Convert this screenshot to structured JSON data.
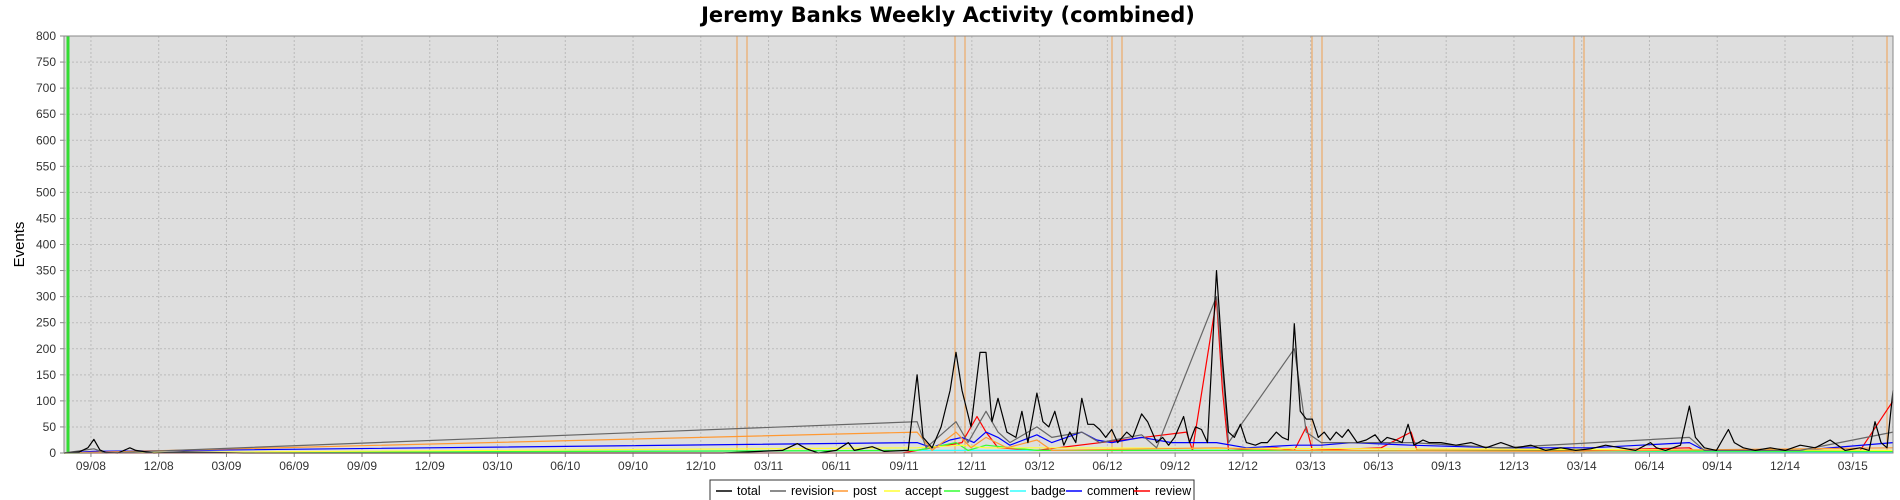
{
  "chart_data": {
    "type": "line",
    "title": "Jeremy Banks Weekly Activity (combined)",
    "ylabel": "Events",
    "xlabel": "",
    "ylim": [
      0,
      800
    ],
    "yticks": [
      0,
      50,
      100,
      150,
      200,
      250,
      300,
      350,
      400,
      450,
      500,
      550,
      600,
      650,
      700,
      750,
      800
    ],
    "x_tick_labels": [
      "09/08",
      "12/08",
      "03/09",
      "06/09",
      "09/09",
      "12/09",
      "03/10",
      "06/10",
      "09/10",
      "12/10",
      "03/11",
      "06/11",
      "09/11",
      "12/11",
      "03/12",
      "06/12",
      "09/12",
      "12/12",
      "03/13",
      "06/13",
      "09/13",
      "12/13",
      "03/14",
      "06/14",
      "09/14",
      "12/14",
      "03/15"
    ],
    "grid": true,
    "legend_position": "bottom",
    "series": [
      {
        "name": "total",
        "color": "#000000",
        "points": [
          [
            0,
            0
          ],
          [
            5,
            2
          ],
          [
            8,
            10
          ],
          [
            10,
            26
          ],
          [
            12,
            6
          ],
          [
            14,
            1
          ],
          [
            18,
            0
          ],
          [
            22,
            10
          ],
          [
            24,
            5
          ],
          [
            30,
            0
          ],
          [
            40,
            2
          ],
          [
            60,
            0
          ],
          [
            100,
            0
          ],
          [
            220,
            0
          ],
          [
            240,
            5
          ],
          [
            245,
            18
          ],
          [
            248,
            8
          ],
          [
            252,
            0
          ],
          [
            258,
            5
          ],
          [
            262,
            20
          ],
          [
            264,
            5
          ],
          [
            270,
            12
          ],
          [
            274,
            3
          ],
          [
            282,
            5
          ],
          [
            285,
            150
          ],
          [
            287,
            30
          ],
          [
            290,
            10
          ],
          [
            293,
            50
          ],
          [
            296,
            120
          ],
          [
            298,
            193
          ],
          [
            300,
            120
          ],
          [
            303,
            50
          ],
          [
            306,
            193
          ],
          [
            308,
            193
          ],
          [
            310,
            60
          ],
          [
            312,
            105
          ],
          [
            315,
            40
          ],
          [
            318,
            30
          ],
          [
            320,
            80
          ],
          [
            322,
            20
          ],
          [
            325,
            115
          ],
          [
            327,
            60
          ],
          [
            329,
            50
          ],
          [
            331,
            80
          ],
          [
            334,
            15
          ],
          [
            336,
            40
          ],
          [
            338,
            20
          ],
          [
            340,
            105
          ],
          [
            342,
            55
          ],
          [
            344,
            55
          ],
          [
            346,
            45
          ],
          [
            348,
            30
          ],
          [
            350,
            45
          ],
          [
            352,
            20
          ],
          [
            355,
            40
          ],
          [
            357,
            30
          ],
          [
            360,
            75
          ],
          [
            362,
            60
          ],
          [
            365,
            20
          ],
          [
            367,
            30
          ],
          [
            369,
            15
          ],
          [
            371,
            30
          ],
          [
            374,
            70
          ],
          [
            376,
            20
          ],
          [
            378,
            50
          ],
          [
            380,
            45
          ],
          [
            382,
            20
          ],
          [
            385,
            350
          ],
          [
            387,
            180
          ],
          [
            389,
            40
          ],
          [
            391,
            30
          ],
          [
            393,
            55
          ],
          [
            395,
            20
          ],
          [
            398,
            15
          ],
          [
            400,
            20
          ],
          [
            402,
            20
          ],
          [
            405,
            40
          ],
          [
            407,
            30
          ],
          [
            409,
            25
          ],
          [
            411,
            248
          ],
          [
            413,
            80
          ],
          [
            415,
            65
          ],
          [
            417,
            65
          ],
          [
            419,
            30
          ],
          [
            421,
            40
          ],
          [
            423,
            25
          ],
          [
            425,
            40
          ],
          [
            427,
            30
          ],
          [
            429,
            45
          ],
          [
            432,
            20
          ],
          [
            435,
            25
          ],
          [
            438,
            35
          ],
          [
            440,
            20
          ],
          [
            442,
            30
          ],
          [
            445,
            25
          ],
          [
            447,
            20
          ],
          [
            449,
            55
          ],
          [
            451,
            15
          ],
          [
            454,
            25
          ],
          [
            456,
            20
          ],
          [
            460,
            20
          ],
          [
            465,
            15
          ],
          [
            470,
            20
          ],
          [
            475,
            10
          ],
          [
            480,
            20
          ],
          [
            485,
            10
          ],
          [
            490,
            15
          ],
          [
            495,
            5
          ],
          [
            500,
            10
          ],
          [
            505,
            5
          ],
          [
            510,
            8
          ],
          [
            515,
            15
          ],
          [
            520,
            10
          ],
          [
            525,
            5
          ],
          [
            530,
            20
          ],
          [
            532,
            10
          ],
          [
            535,
            5
          ],
          [
            540,
            15
          ],
          [
            543,
            90
          ],
          [
            545,
            30
          ],
          [
            548,
            10
          ],
          [
            552,
            5
          ],
          [
            556,
            45
          ],
          [
            558,
            20
          ],
          [
            561,
            10
          ],
          [
            565,
            5
          ],
          [
            570,
            10
          ],
          [
            575,
            5
          ],
          [
            580,
            15
          ],
          [
            585,
            10
          ],
          [
            590,
            25
          ],
          [
            595,
            5
          ],
          [
            600,
            10
          ],
          [
            603,
            5
          ],
          [
            605,
            60
          ],
          [
            607,
            20
          ],
          [
            609,
            10
          ],
          [
            611,
            120
          ]
        ]
      },
      {
        "name": "revision",
        "color": "#666666",
        "points": [
          [
            0,
            0
          ],
          [
            10,
            8
          ],
          [
            14,
            0
          ],
          [
            285,
            60
          ],
          [
            288,
            10
          ],
          [
            298,
            60
          ],
          [
            302,
            20
          ],
          [
            308,
            80
          ],
          [
            312,
            40
          ],
          [
            316,
            20
          ],
          [
            325,
            50
          ],
          [
            330,
            30
          ],
          [
            340,
            40
          ],
          [
            346,
            20
          ],
          [
            360,
            35
          ],
          [
            365,
            10
          ],
          [
            385,
            300
          ],
          [
            389,
            20
          ],
          [
            411,
            200
          ],
          [
            415,
            40
          ],
          [
            420,
            20
          ],
          [
            430,
            20
          ],
          [
            450,
            20
          ],
          [
            480,
            10
          ],
          [
            543,
            30
          ],
          [
            548,
            5
          ],
          [
            580,
            5
          ],
          [
            611,
            40
          ]
        ]
      },
      {
        "name": "post",
        "color": "#ff9933",
        "points": [
          [
            0,
            0
          ],
          [
            285,
            40
          ],
          [
            290,
            5
          ],
          [
            298,
            40
          ],
          [
            303,
            10
          ],
          [
            308,
            30
          ],
          [
            315,
            10
          ],
          [
            325,
            25
          ],
          [
            330,
            5
          ],
          [
            385,
            10
          ],
          [
            411,
            5
          ],
          [
            500,
            3
          ],
          [
            611,
            10
          ]
        ]
      },
      {
        "name": "accept",
        "color": "#ffff33",
        "points": [
          [
            0,
            0
          ],
          [
            285,
            10
          ],
          [
            300,
            15
          ],
          [
            308,
            10
          ],
          [
            325,
            10
          ],
          [
            611,
            5
          ]
        ]
      },
      {
        "name": "suggest",
        "color": "#33ff33",
        "points": [
          [
            0,
            0
          ],
          [
            285,
            5
          ],
          [
            298,
            20
          ],
          [
            302,
            5
          ],
          [
            308,
            15
          ],
          [
            325,
            5
          ],
          [
            385,
            5
          ],
          [
            611,
            3
          ]
        ]
      },
      {
        "name": "badge",
        "color": "#33ffff",
        "points": [
          [
            0,
            0
          ],
          [
            285,
            5
          ],
          [
            300,
            5
          ],
          [
            325,
            5
          ],
          [
            385,
            5
          ],
          [
            611,
            2
          ]
        ]
      },
      {
        "name": "comment",
        "color": "#0000ff",
        "points": [
          [
            0,
            0
          ],
          [
            10,
            3
          ],
          [
            285,
            20
          ],
          [
            290,
            10
          ],
          [
            296,
            25
          ],
          [
            300,
            30
          ],
          [
            304,
            20
          ],
          [
            308,
            40
          ],
          [
            312,
            30
          ],
          [
            316,
            15
          ],
          [
            325,
            35
          ],
          [
            330,
            20
          ],
          [
            340,
            40
          ],
          [
            345,
            25
          ],
          [
            350,
            20
          ],
          [
            360,
            30
          ],
          [
            370,
            20
          ],
          [
            385,
            20
          ],
          [
            395,
            10
          ],
          [
            411,
            15
          ],
          [
            420,
            15
          ],
          [
            430,
            20
          ],
          [
            450,
            15
          ],
          [
            480,
            10
          ],
          [
            510,
            10
          ],
          [
            543,
            20
          ],
          [
            548,
            5
          ],
          [
            580,
            5
          ],
          [
            611,
            20
          ]
        ]
      },
      {
        "name": "review",
        "color": "#ff0000",
        "points": [
          [
            0,
            0
          ],
          [
            280,
            0
          ],
          [
            285,
            5
          ],
          [
            300,
            20
          ],
          [
            305,
            70
          ],
          [
            308,
            40
          ],
          [
            312,
            10
          ],
          [
            325,
            5
          ],
          [
            375,
            40
          ],
          [
            377,
            5
          ],
          [
            385,
            295
          ],
          [
            387,
            120
          ],
          [
            389,
            5
          ],
          [
            405,
            10
          ],
          [
            411,
            5
          ],
          [
            415,
            50
          ],
          [
            417,
            5
          ],
          [
            440,
            10
          ],
          [
            450,
            40
          ],
          [
            452,
            5
          ],
          [
            480,
            5
          ],
          [
            510,
            5
          ],
          [
            543,
            10
          ],
          [
            545,
            3
          ],
          [
            580,
            5
          ],
          [
            600,
            5
          ],
          [
            611,
            100
          ]
        ]
      }
    ]
  }
}
